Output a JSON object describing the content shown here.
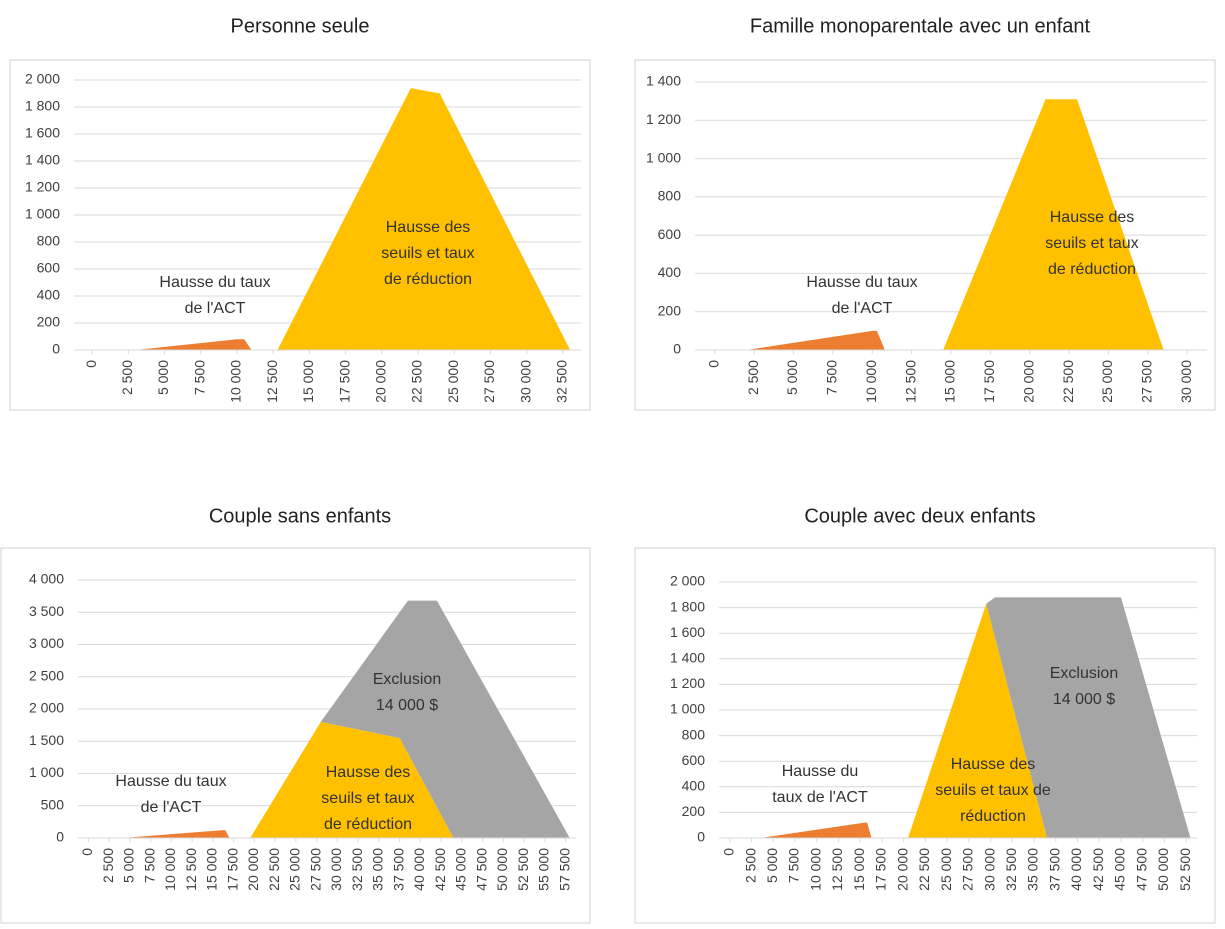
{
  "chart_data": [
    {
      "type": "area",
      "title": "Personne seule",
      "x": [
        0,
        3000,
        10000,
        10500,
        11000,
        12800,
        22000,
        24000,
        33000
      ],
      "series": [
        {
          "color": "#ed7d31",
          "values": [
            0,
            0,
            80,
            80,
            0,
            0,
            0,
            0,
            0
          ]
        },
        {
          "color": "#ffc000",
          "values": [
            0,
            0,
            0,
            0,
            0,
            0,
            1940,
            1900,
            0
          ]
        }
      ],
      "xlim": [
        -1250,
        33750
      ],
      "xticks": [
        0,
        {
          "value": 2500,
          "label": "2 500"
        },
        {
          "value": 5000,
          "label": "5 000"
        },
        {
          "value": 7500,
          "label": "7 500"
        },
        {
          "value": 10000,
          "label": "10 000"
        },
        {
          "value": 12500,
          "label": "12 500"
        },
        {
          "value": 15000,
          "label": "15 000"
        },
        {
          "value": 17500,
          "label": "17 500"
        },
        {
          "value": 20000,
          "label": "20 000"
        },
        {
          "value": 22500,
          "label": "22 500"
        },
        {
          "value": 25000,
          "label": "25 000"
        },
        {
          "value": 27500,
          "label": "27 500"
        },
        {
          "value": 30000,
          "label": "30 000"
        },
        {
          "value": 32500,
          "label": "32 500"
        }
      ],
      "ylim": [
        0,
        2000
      ],
      "yticks": [
        0,
        200,
        400,
        600,
        800,
        {
          "value": 1000,
          "label": "1 000"
        },
        {
          "value": 1200,
          "label": "1 200"
        },
        {
          "value": 1400,
          "label": "1 400"
        },
        {
          "value": 1600,
          "label": "1 600"
        },
        {
          "value": 1800,
          "label": "1 800"
        },
        {
          "value": 2000,
          "label": "2 000"
        }
      ],
      "grid": true,
      "annotations": [
        [
          "Hausse du taux",
          "de l'ACT"
        ],
        [
          "Hausse des",
          "seuils et taux",
          "de réduction"
        ]
      ]
    },
    {
      "type": "area",
      "title": "Famille monoparentale avec un enfant",
      "x": [
        0,
        2000,
        10000,
        10300,
        10800,
        14500,
        21000,
        23000,
        28500
      ],
      "series": [
        {
          "color": "#ed7d31",
          "values": [
            0,
            0,
            100,
            100,
            0,
            0,
            0,
            0,
            0
          ]
        },
        {
          "color": "#ffc000",
          "values": [
            0,
            0,
            0,
            0,
            0,
            0,
            1310,
            1310,
            0
          ]
        }
      ],
      "xlim": [
        -1250,
        31250
      ],
      "xticks": [
        0,
        {
          "value": 2500,
          "label": "2 500"
        },
        {
          "value": 5000,
          "label": "5 000"
        },
        {
          "value": 7500,
          "label": "7 500"
        },
        {
          "value": 10000,
          "label": "10 000"
        },
        {
          "value": 12500,
          "label": "12 500"
        },
        {
          "value": 15000,
          "label": "15 000"
        },
        {
          "value": 17500,
          "label": "17 500"
        },
        {
          "value": 20000,
          "label": "20 000"
        },
        {
          "value": 22500,
          "label": "22 500"
        },
        {
          "value": 25000,
          "label": "25 000"
        },
        {
          "value": 27500,
          "label": "27 500"
        },
        {
          "value": 30000,
          "label": "30 000"
        }
      ],
      "ylim": [
        0,
        1400
      ],
      "yticks": [
        0,
        200,
        400,
        600,
        800,
        {
          "value": 1000,
          "label": "1 000"
        },
        {
          "value": 1200,
          "label": "1 200"
        },
        {
          "value": 1400,
          "label": "1 400"
        }
      ],
      "grid": true,
      "annotations": [
        [
          "Hausse du taux",
          "de l'ACT"
        ],
        [
          "Hausse des",
          "seuils et taux",
          "de réduction"
        ]
      ]
    },
    {
      "type": "area",
      "title": "Couple sans enfants",
      "x": [
        0,
        4000,
        16000,
        16500,
        17000,
        19500,
        28000,
        37500,
        38500,
        42000,
        44000,
        58000
      ],
      "series": [
        {
          "color": "#ed7d31",
          "values": [
            0,
            0,
            120,
            120,
            0,
            0,
            0,
            0,
            0,
            0,
            0,
            0
          ]
        },
        {
          "color": "#ffc000",
          "values": [
            0,
            0,
            0,
            0,
            0,
            0,
            1800,
            1550,
            1312,
            477,
            0,
            0
          ]
        },
        {
          "color": "#a5a5a5",
          "values": [
            0,
            0,
            0,
            0,
            0,
            0,
            0,
            1951,
            2368,
            3203,
            3220,
            0
          ]
        }
      ],
      "xlim": [
        -1250,
        58750
      ],
      "xticks": [
        0,
        {
          "value": 2500,
          "label": "2 500"
        },
        {
          "value": 5000,
          "label": "5 000"
        },
        {
          "value": 7500,
          "label": "7 500"
        },
        {
          "value": 10000,
          "label": "10 000"
        },
        {
          "value": 12500,
          "label": "12 500"
        },
        {
          "value": 15000,
          "label": "15 000"
        },
        {
          "value": 17500,
          "label": "17 500"
        },
        {
          "value": 20000,
          "label": "20 000"
        },
        {
          "value": 22500,
          "label": "22 500"
        },
        {
          "value": 25000,
          "label": "25 000"
        },
        {
          "value": 27500,
          "label": "27 500"
        },
        {
          "value": 30000,
          "label": "30 000"
        },
        {
          "value": 32500,
          "label": "32 500"
        },
        {
          "value": 35000,
          "label": "35 000"
        },
        {
          "value": 37500,
          "label": "37 500"
        },
        {
          "value": 40000,
          "label": "40 000"
        },
        {
          "value": 42500,
          "label": "42 500"
        },
        {
          "value": 45000,
          "label": "45 000"
        },
        {
          "value": 47500,
          "label": "47 500"
        },
        {
          "value": 50000,
          "label": "50 000"
        },
        {
          "value": 52500,
          "label": "52 500"
        },
        {
          "value": 55000,
          "label": "55 000"
        },
        {
          "value": 57500,
          "label": "57 500"
        }
      ],
      "ylim": [
        0,
        4000
      ],
      "yticks": [
        0,
        500,
        {
          "value": 1000,
          "label": "1 000"
        },
        {
          "value": 1500,
          "label": "1 500"
        },
        {
          "value": 2000,
          "label": "2 000"
        },
        {
          "value": 2500,
          "label": "2 500"
        },
        {
          "value": 3000,
          "label": "3 000"
        },
        {
          "value": 3500,
          "label": "3 500"
        },
        {
          "value": 4000,
          "label": "4 000"
        }
      ],
      "grid": true,
      "annotations": [
        [
          "Hausse du taux",
          "de l'ACT"
        ],
        [
          "Exclusion",
          "14 000 $"
        ],
        [
          "Hausse des",
          "seuils et taux",
          "de réduction"
        ]
      ]
    },
    {
      "type": "area",
      "title": "Couple avec deux enfants",
      "x": [
        0,
        3500,
        15500,
        15800,
        16300,
        20500,
        29500,
        30500,
        36500,
        45000,
        53000
      ],
      "series": [
        {
          "color": "#ed7d31",
          "values": [
            0,
            0,
            120,
            120,
            0,
            0,
            0,
            0,
            0,
            0,
            0
          ]
        },
        {
          "color": "#ffc000",
          "values": [
            0,
            0,
            0,
            0,
            0,
            0,
            1830,
            1569,
            0,
            0,
            0
          ]
        },
        {
          "color": "#a5a5a5",
          "values": [
            0,
            0,
            0,
            0,
            0,
            0,
            0,
            311,
            1880,
            1880,
            0
          ]
        }
      ],
      "xlim": [
        -1250,
        53750
      ],
      "xticks": [
        0,
        {
          "value": 2500,
          "label": "2 500"
        },
        {
          "value": 5000,
          "label": "5 000"
        },
        {
          "value": 7500,
          "label": "7 500"
        },
        {
          "value": 10000,
          "label": "10 000"
        },
        {
          "value": 12500,
          "label": "12 500"
        },
        {
          "value": 15000,
          "label": "15 000"
        },
        {
          "value": 17500,
          "label": "17 500"
        },
        {
          "value": 20000,
          "label": "20 000"
        },
        {
          "value": 22500,
          "label": "22 500"
        },
        {
          "value": 25000,
          "label": "25 000"
        },
        {
          "value": 27500,
          "label": "27 500"
        },
        {
          "value": 30000,
          "label": "30 000"
        },
        {
          "value": 32500,
          "label": "32 500"
        },
        {
          "value": 35000,
          "label": "35 000"
        },
        {
          "value": 37500,
          "label": "37 500"
        },
        {
          "value": 40000,
          "label": "40 000"
        },
        {
          "value": 42500,
          "label": "42 500"
        },
        {
          "value": 45000,
          "label": "45 000"
        },
        {
          "value": 47500,
          "label": "47 500"
        },
        {
          "value": 50000,
          "label": "50 000"
        },
        {
          "value": 52500,
          "label": "52 500"
        }
      ],
      "ylim": [
        0,
        2000
      ],
      "yticks": [
        0,
        200,
        400,
        600,
        800,
        {
          "value": 1000,
          "label": "1 000"
        },
        {
          "value": 1200,
          "label": "1 200"
        },
        {
          "value": 1400,
          "label": "1 400"
        },
        {
          "value": 1600,
          "label": "1 600"
        },
        {
          "value": 1800,
          "label": "1 800"
        },
        {
          "value": 2000,
          "label": "2 000"
        }
      ],
      "grid": true,
      "annotations": [
        [
          "Hausse du",
          "taux de l'ACT"
        ],
        [
          "Exclusion",
          "14 000 $"
        ],
        [
          "Hausse des",
          "seuils et taux de",
          "réduction"
        ]
      ]
    }
  ]
}
